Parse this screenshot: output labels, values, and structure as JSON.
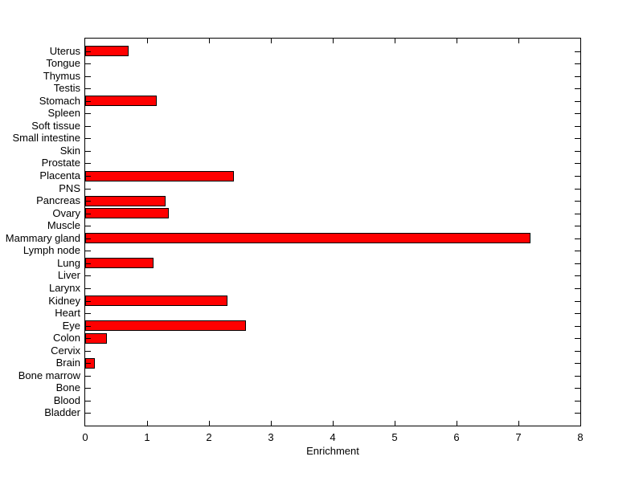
{
  "figure": {
    "background": "#FFFFFF"
  },
  "chart_data": {
    "type": "bar",
    "orientation": "horizontal",
    "title": "",
    "xlabel": "Enrichment",
    "ylabel": "",
    "xlim": [
      0,
      8
    ],
    "xticks": [
      0,
      1,
      2,
      3,
      4,
      5,
      6,
      7,
      8
    ],
    "grid": false,
    "legend": null,
    "bar_color": "#FF0000",
    "bar_edge_color": "#000000",
    "axis_color": "#000000",
    "categories": [
      "Uterus",
      "Tongue",
      "Thymus",
      "Testis",
      "Stomach",
      "Spleen",
      "Soft tissue",
      "Small intestine",
      "Skin",
      "Prostate",
      "Placenta",
      "PNS",
      "Pancreas",
      "Ovary",
      "Muscle",
      "Mammary gland",
      "Lymph node",
      "Lung",
      "Liver",
      "Larynx",
      "Kidney",
      "Heart",
      "Eye",
      "Colon",
      "Cervix",
      "Brain",
      "Bone marrow",
      "Bone",
      "Blood",
      "Bladder"
    ],
    "values": [
      0.7,
      0,
      0,
      0,
      1.15,
      0,
      0,
      0,
      0,
      0,
      2.4,
      0,
      1.3,
      1.35,
      0,
      7.2,
      0,
      1.1,
      0,
      0,
      2.3,
      0,
      2.6,
      0.35,
      0,
      0.15,
      0,
      0,
      0,
      0
    ]
  }
}
